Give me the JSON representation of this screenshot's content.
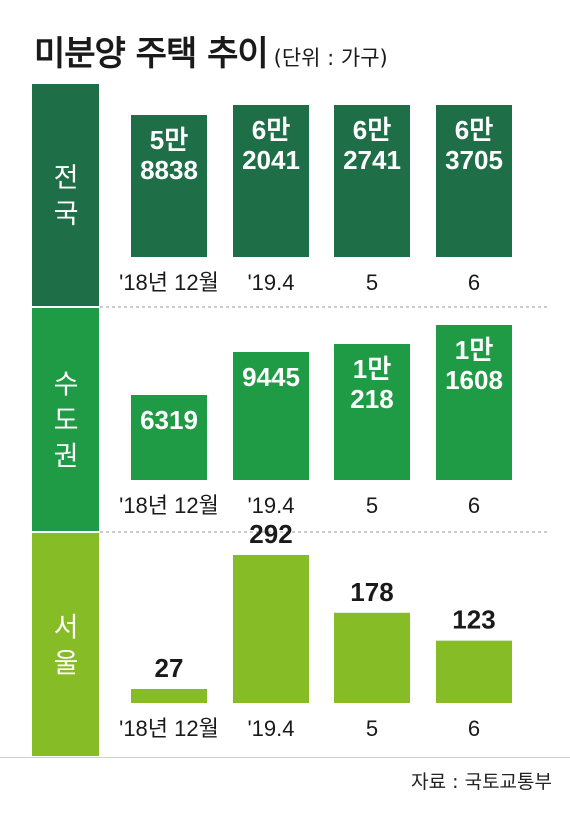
{
  "title": "미분양 주택 추이",
  "unit": "(단위 : 가구)",
  "source": "자료 : 국토교통부",
  "colors": {
    "nation": "#1e6e47",
    "capital": "#1f9a45",
    "seoul": "#86bc25"
  },
  "chart_data": [
    {
      "type": "bar",
      "panel": "전국",
      "categories": [
        "'18년 12월",
        "'19.4",
        "5",
        "6"
      ],
      "values": [
        58838,
        62041,
        62741,
        63705
      ],
      "data_labels": [
        [
          "5만",
          "8838"
        ],
        [
          "6만",
          "2041"
        ],
        [
          "6만",
          "2741"
        ],
        [
          "6만",
          "3705"
        ]
      ]
    },
    {
      "type": "bar",
      "panel": "수도권",
      "categories": [
        "'18년 12월",
        "'19.4",
        "5",
        "6"
      ],
      "values": [
        6319,
        9445,
        10218,
        11608
      ],
      "data_labels": [
        [
          "6319"
        ],
        [
          "9445"
        ],
        [
          "1만",
          "218"
        ],
        [
          "1만",
          "1608"
        ]
      ]
    },
    {
      "type": "bar",
      "panel": "서울",
      "categories": [
        "'18년 12월",
        "'19.4",
        "5",
        "6"
      ],
      "values": [
        27,
        292,
        178,
        123
      ],
      "data_labels": [
        [
          "27"
        ],
        [
          "292"
        ],
        [
          "178"
        ],
        [
          "123"
        ]
      ]
    }
  ]
}
